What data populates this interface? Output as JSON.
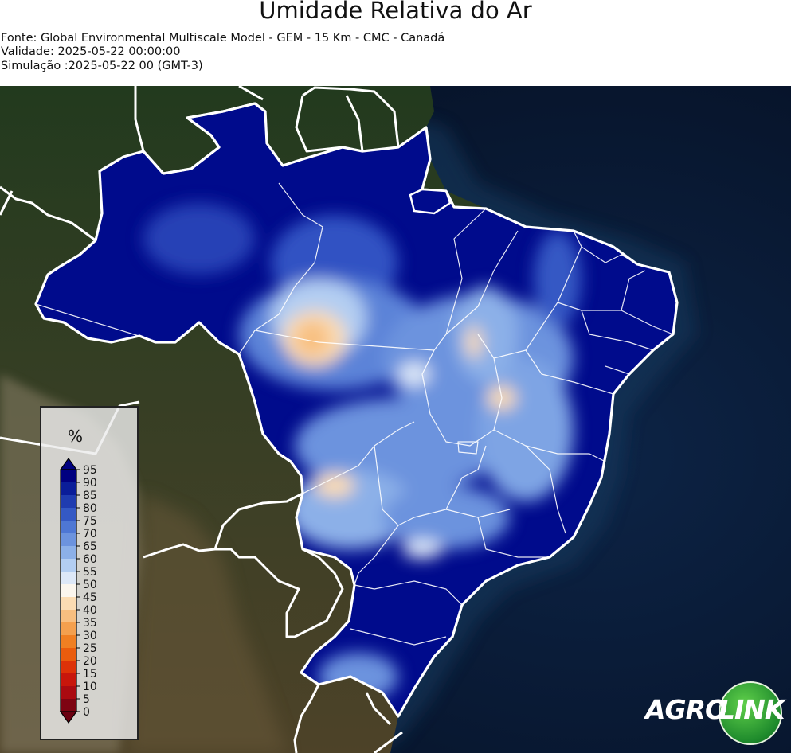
{
  "header": {
    "title": "Umidade Relativa do Ar",
    "source": "Fonte: Global Environmental Multiscale Model - GEM - 15 Km - CMC - Canadá",
    "validity": "Validade: 2025-05-22 00:00:00",
    "simulation": "Simulação :2025-05-22 00 (GMT-3)"
  },
  "legend": {
    "unit": "%",
    "ticks": [
      "95",
      "90",
      "85",
      "80",
      "75",
      "70",
      "65",
      "60",
      "55",
      "50",
      "45",
      "40",
      "35",
      "30",
      "25",
      "20",
      "15",
      "10",
      "5",
      "0"
    ],
    "colors": [
      "#000080",
      "#0a1d99",
      "#1f3cb0",
      "#3459c4",
      "#4e77d4",
      "#6c93de",
      "#8cb0e8",
      "#b3cef2",
      "#dde8f8",
      "#fbf6ee",
      "#fbdcb3",
      "#f8bf80",
      "#f4a04e",
      "#f07f22",
      "#ea5c0d",
      "#dd3208",
      "#c8160b",
      "#aa0a10",
      "#7e0412"
    ],
    "lowColor": "#6b0010",
    "highColor": "#000080"
  },
  "logo": {
    "text_agro": "AGRO",
    "text_link": "LINK"
  },
  "map": {
    "ocean_color": "#0a1a33",
    "land_color": "#2a3a22",
    "brazil_color": "#000b8c"
  }
}
